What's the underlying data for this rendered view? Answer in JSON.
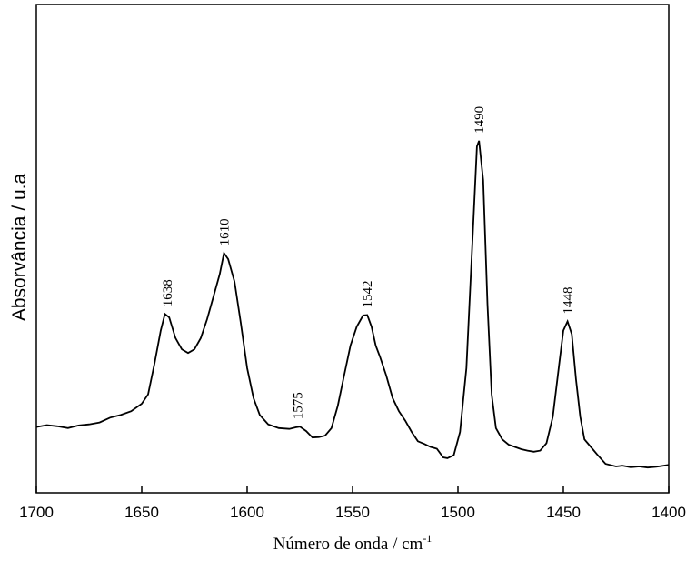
{
  "chart_data": {
    "type": "line",
    "title": "",
    "xlabel": "Número de onda / cm",
    "xlabel_superscript": "-1",
    "ylabel": "Absorvância / u.a",
    "xlim": [
      1700,
      1400
    ],
    "x_reversed": true,
    "ylim": [
      0,
      1
    ],
    "y_ticks_shown": false,
    "grid": false,
    "x_ticks": [
      1700,
      1650,
      1600,
      1550,
      1500,
      1450,
      1400
    ],
    "x_tick_labels": [
      "1700",
      "1650",
      "1600",
      "1550",
      "1500",
      "1450",
      "1400"
    ],
    "series": [
      {
        "color": "#000000",
        "points": [
          [
            1700,
            0.093
          ],
          [
            1695,
            0.098
          ],
          [
            1690,
            0.095
          ],
          [
            1685,
            0.09
          ],
          [
            1680,
            0.097
          ],
          [
            1675,
            0.1
          ],
          [
            1670,
            0.105
          ],
          [
            1665,
            0.118
          ],
          [
            1660,
            0.125
          ],
          [
            1655,
            0.135
          ],
          [
            1650,
            0.155
          ],
          [
            1647,
            0.18
          ],
          [
            1644,
            0.26
          ],
          [
            1641,
            0.35
          ],
          [
            1639,
            0.394
          ],
          [
            1637,
            0.385
          ],
          [
            1634,
            0.33
          ],
          [
            1631,
            0.3
          ],
          [
            1628,
            0.29
          ],
          [
            1625,
            0.3
          ],
          [
            1622,
            0.33
          ],
          [
            1619,
            0.38
          ],
          [
            1616,
            0.44
          ],
          [
            1613,
            0.5
          ],
          [
            1611,
            0.556
          ],
          [
            1609,
            0.54
          ],
          [
            1606,
            0.48
          ],
          [
            1603,
            0.37
          ],
          [
            1600,
            0.25
          ],
          [
            1597,
            0.17
          ],
          [
            1594,
            0.125
          ],
          [
            1590,
            0.1
          ],
          [
            1585,
            0.09
          ],
          [
            1580,
            0.088
          ],
          [
            1577,
            0.092
          ],
          [
            1575,
            0.094
          ],
          [
            1572,
            0.082
          ],
          [
            1569,
            0.065
          ],
          [
            1566,
            0.066
          ],
          [
            1563,
            0.07
          ],
          [
            1560,
            0.09
          ],
          [
            1557,
            0.15
          ],
          [
            1554,
            0.23
          ],
          [
            1551,
            0.31
          ],
          [
            1548,
            0.36
          ],
          [
            1545,
            0.39
          ],
          [
            1543,
            0.391
          ],
          [
            1541,
            0.36
          ],
          [
            1539,
            0.31
          ],
          [
            1537,
            0.28
          ],
          [
            1534,
            0.23
          ],
          [
            1531,
            0.17
          ],
          [
            1528,
            0.135
          ],
          [
            1525,
            0.11
          ],
          [
            1522,
            0.08
          ],
          [
            1519,
            0.055
          ],
          [
            1516,
            0.048
          ],
          [
            1513,
            0.04
          ],
          [
            1510,
            0.035
          ],
          [
            1507,
            0.012
          ],
          [
            1505,
            0.01
          ],
          [
            1502,
            0.018
          ],
          [
            1499,
            0.08
          ],
          [
            1496,
            0.25
          ],
          [
            1493,
            0.6
          ],
          [
            1491,
            0.84
          ],
          [
            1490,
            0.855
          ],
          [
            1488,
            0.75
          ],
          [
            1486,
            0.42
          ],
          [
            1484,
            0.18
          ],
          [
            1482,
            0.09
          ],
          [
            1479,
            0.06
          ],
          [
            1476,
            0.046
          ],
          [
            1473,
            0.04
          ],
          [
            1470,
            0.034
          ],
          [
            1467,
            0.03
          ],
          [
            1464,
            0.027
          ],
          [
            1461,
            0.03
          ],
          [
            1458,
            0.05
          ],
          [
            1455,
            0.12
          ],
          [
            1452,
            0.26
          ],
          [
            1450,
            0.35
          ],
          [
            1448,
            0.374
          ],
          [
            1446,
            0.34
          ],
          [
            1444,
            0.22
          ],
          [
            1442,
            0.12
          ],
          [
            1440,
            0.06
          ],
          [
            1437,
            0.04
          ],
          [
            1434,
            0.02
          ],
          [
            1430,
            -0.005
          ],
          [
            1425,
            -0.012
          ],
          [
            1422,
            -0.01
          ],
          [
            1418,
            -0.014
          ],
          [
            1414,
            -0.012
          ],
          [
            1410,
            -0.015
          ],
          [
            1406,
            -0.013
          ],
          [
            1400,
            -0.008
          ]
        ]
      }
    ],
    "annotations": [
      {
        "text": "1638",
        "x": 1638,
        "y": 0.394
      },
      {
        "text": "1610",
        "x": 1611,
        "y": 0.556
      },
      {
        "text": "1575",
        "x": 1576,
        "y": 0.094
      },
      {
        "text": "1542",
        "x": 1543,
        "y": 0.391
      },
      {
        "text": "1490",
        "x": 1490,
        "y": 0.855
      },
      {
        "text": "1448",
        "x": 1448,
        "y": 0.374
      }
    ]
  }
}
